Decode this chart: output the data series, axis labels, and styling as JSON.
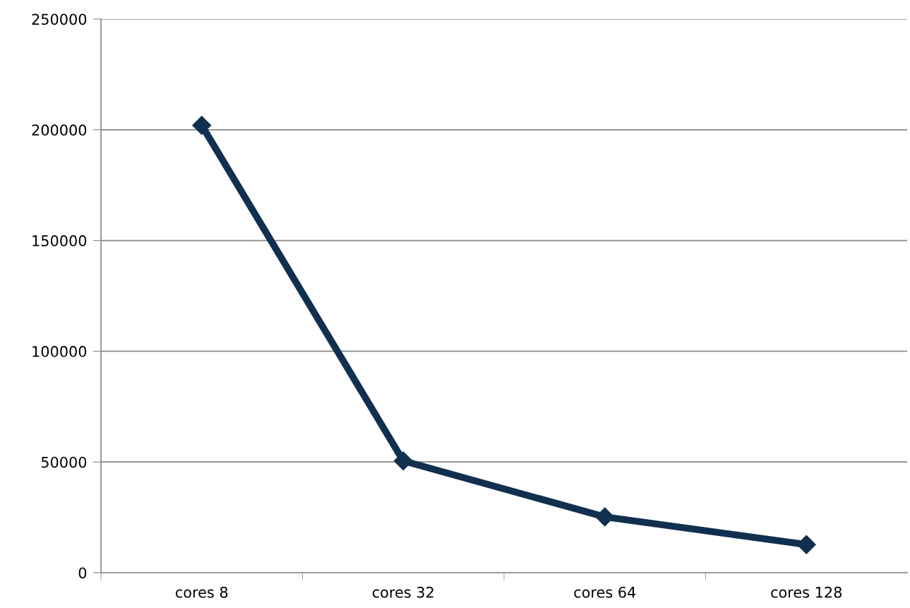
{
  "chart_data": {
    "type": "line",
    "categories": [
      "cores 8",
      "cores 32",
      "cores 64",
      "cores 128"
    ],
    "series": [
      {
        "color": "#11304f",
        "values": [
          202000,
          50500,
          25200,
          12700
        ]
      }
    ],
    "ylim": [
      0,
      250000
    ],
    "yticks": [
      0,
      50000,
      100000,
      150000,
      200000,
      250000
    ],
    "grid": "y",
    "marker": "diamond",
    "line_style": "solid",
    "legend": false
  }
}
